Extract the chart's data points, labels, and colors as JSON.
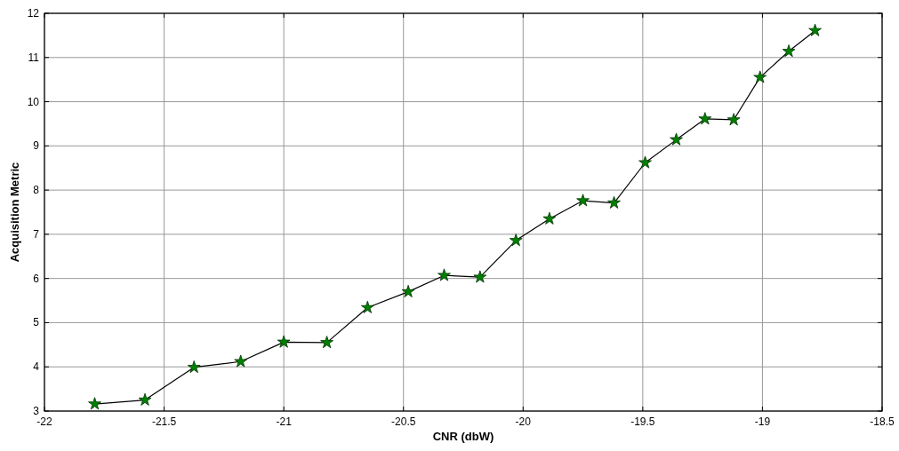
{
  "chart_data": {
    "type": "line",
    "xlabel": "CNR (dbW)",
    "ylabel": "Acquisition Metric",
    "x": [
      -21.79,
      -21.58,
      -21.375,
      -21.18,
      -21.0,
      -20.82,
      -20.65,
      -20.48,
      -20.33,
      -20.18,
      -20.03,
      -19.89,
      -19.75,
      -19.62,
      -19.49,
      -19.36,
      -19.24,
      -19.12,
      -19.01,
      -18.89,
      -18.78
    ],
    "series": [
      {
        "color": "#008000",
        "values": [
          3.16,
          3.25,
          3.99,
          4.12,
          4.56,
          4.55,
          5.34,
          5.7,
          6.07,
          6.03,
          6.86,
          7.35,
          7.76,
          7.71,
          8.62,
          9.14,
          9.61,
          9.59,
          10.55,
          11.14,
          11.61
        ]
      }
    ],
    "xlim": [
      -22,
      -18.5
    ],
    "xticks": [
      -22,
      -21.5,
      -21,
      -20.5,
      -20,
      -19.5,
      -19,
      -18.5
    ],
    "ylim": [
      3,
      12
    ],
    "yticks": [
      3,
      4,
      5,
      6,
      7,
      8,
      9,
      10,
      11,
      12
    ],
    "grid": true,
    "marker": "star",
    "line_style": "solid"
  }
}
